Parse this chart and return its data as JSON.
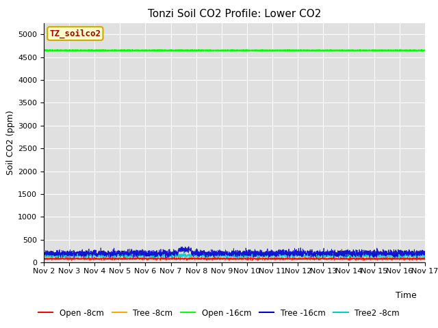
{
  "title": "Tonzi Soil CO2 Profile: Lower CO2",
  "xlabel": "Time",
  "ylabel": "Soil CO2 (ppm)",
  "ylim": [
    0,
    5250
  ],
  "yticks": [
    0,
    500,
    1000,
    1500,
    2000,
    2500,
    3000,
    3500,
    4000,
    4500,
    5000
  ],
  "x_start_day": 2,
  "x_end_day": 17,
  "x_tick_days": [
    2,
    3,
    4,
    5,
    6,
    7,
    8,
    9,
    10,
    11,
    12,
    13,
    14,
    15,
    16,
    17
  ],
  "x_tick_labels": [
    "Nov 2",
    "Nov 3",
    "Nov 4",
    "Nov 5",
    "Nov 6",
    "Nov 7",
    "Nov 8",
    "Nov 9",
    "Nov 10",
    "Nov 11",
    "Nov 12",
    "Nov 13",
    "Nov 14",
    "Nov 15",
    "Nov 16",
    "Nov 17"
  ],
  "n_points": 3600,
  "series": {
    "open_8cm": {
      "color": "#ff0000",
      "mean": 80,
      "std": 12,
      "label": "Open -8cm"
    },
    "tree_8cm": {
      "color": "#ffa500",
      "mean": 90,
      "std": 8,
      "label": "Tree -8cm"
    },
    "open_16cm": {
      "color": "#00ff00",
      "mean": 4650,
      "std": 3,
      "label": "Open -16cm"
    },
    "tree_16cm": {
      "color": "#0000cc",
      "mean": 200,
      "std": 35,
      "label": "Tree -16cm"
    },
    "tree2_8cm": {
      "color": "#00cccc",
      "mean": 150,
      "std": 18,
      "label": "Tree2 -8cm"
    }
  },
  "legend_box_label": "TZ_soilco2",
  "legend_box_bg": "#ffffcc",
  "legend_box_edge": "#ccaa00",
  "legend_box_text_color": "#aa0000",
  "plot_bg": "#e0e0e0",
  "fig_bg": "#ffffff",
  "title_fontsize": 11,
  "axis_label_fontsize": 9,
  "tick_fontsize": 8,
  "legend_fontsize": 8.5
}
